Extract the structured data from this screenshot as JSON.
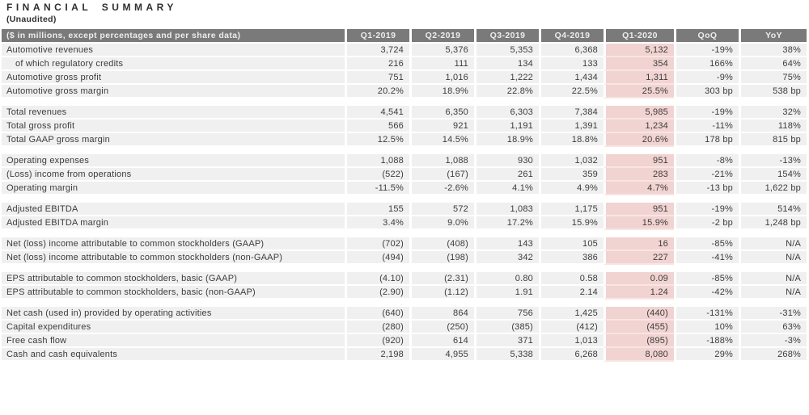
{
  "title": "FINANCIAL SUMMARY",
  "subtitle": "(Unaudited)",
  "colors": {
    "header_bg": "#7a7a7a",
    "header_text": "#ededed",
    "row_bg": "#f0f0f0",
    "highlight_bg": "#f1d3d2",
    "highlight_divider": "#f7e5e4",
    "text": "#3c3c3c",
    "title_text": "#2f2f2f"
  },
  "table": {
    "header": [
      "($ in millions, except percentages and per share data)",
      "Q1-2019",
      "Q2-2019",
      "Q3-2019",
      "Q4-2019",
      "Q1-2020",
      "QoQ",
      "YoY"
    ],
    "highlight_column": "Q1-2020",
    "sections": [
      {
        "rows": [
          {
            "label": "Automotive revenues",
            "indent": false,
            "values": [
              "3,724",
              "5,376",
              "5,353",
              "6,368",
              "5,132",
              "-19%",
              "38%"
            ]
          },
          {
            "label": "of which regulatory credits",
            "indent": true,
            "values": [
              "216",
              "111",
              "134",
              "133",
              "354",
              "166%",
              "64%"
            ]
          },
          {
            "label": "Automotive gross profit",
            "indent": false,
            "values": [
              "751",
              "1,016",
              "1,222",
              "1,434",
              "1,311",
              "-9%",
              "75%"
            ]
          },
          {
            "label": "Automotive gross margin",
            "indent": false,
            "values": [
              "20.2%",
              "18.9%",
              "22.8%",
              "22.5%",
              "25.5%",
              "303 bp",
              "538 bp"
            ]
          }
        ]
      },
      {
        "rows": [
          {
            "label": "Total revenues",
            "indent": false,
            "values": [
              "4,541",
              "6,350",
              "6,303",
              "7,384",
              "5,985",
              "-19%",
              "32%"
            ]
          },
          {
            "label": "Total gross profit",
            "indent": false,
            "values": [
              "566",
              "921",
              "1,191",
              "1,391",
              "1,234",
              "-11%",
              "118%"
            ]
          },
          {
            "label": "Total GAAP gross margin",
            "indent": false,
            "values": [
              "12.5%",
              "14.5%",
              "18.9%",
              "18.8%",
              "20.6%",
              "178 bp",
              "815 bp"
            ]
          }
        ]
      },
      {
        "rows": [
          {
            "label": "Operating expenses",
            "indent": false,
            "values": [
              "1,088",
              "1,088",
              "930",
              "1,032",
              "951",
              "-8%",
              "-13%"
            ]
          },
          {
            "label": "(Loss) income from operations",
            "indent": false,
            "values": [
              "(522)",
              "(167)",
              "261",
              "359",
              "283",
              "-21%",
              "154%"
            ]
          },
          {
            "label": "Operating margin",
            "indent": false,
            "values": [
              "-11.5%",
              "-2.6%",
              "4.1%",
              "4.9%",
              "4.7%",
              "-13 bp",
              "1,622 bp"
            ]
          }
        ]
      },
      {
        "rows": [
          {
            "label": "Adjusted EBITDA",
            "indent": false,
            "values": [
              "155",
              "572",
              "1,083",
              "1,175",
              "951",
              "-19%",
              "514%"
            ]
          },
          {
            "label": "Adjusted EBITDA margin",
            "indent": false,
            "values": [
              "3.4%",
              "9.0%",
              "17.2%",
              "15.9%",
              "15.9%",
              "-2 bp",
              "1,248 bp"
            ]
          }
        ]
      },
      {
        "rows": [
          {
            "label": "Net (loss) income attributable to common stockholders (GAAP)",
            "indent": false,
            "values": [
              "(702)",
              "(408)",
              "143",
              "105",
              "16",
              "-85%",
              "N/A"
            ]
          },
          {
            "label": "Net (loss) income attributable to common stockholders (non-GAAP)",
            "indent": false,
            "values": [
              "(494)",
              "(198)",
              "342",
              "386",
              "227",
              "-41%",
              "N/A"
            ]
          }
        ]
      },
      {
        "rows": [
          {
            "label": "EPS attributable to common stockholders, basic (GAAP)",
            "indent": false,
            "values": [
              "(4.10)",
              "(2.31)",
              "0.80",
              "0.58",
              "0.09",
              "-85%",
              "N/A"
            ]
          },
          {
            "label": "EPS attributable to common stockholders, basic (non-GAAP)",
            "indent": false,
            "values": [
              "(2.90)",
              "(1.12)",
              "1.91",
              "2.14",
              "1.24",
              "-42%",
              "N/A"
            ]
          }
        ]
      },
      {
        "rows": [
          {
            "label": "Net cash (used in) provided by operating activities",
            "indent": false,
            "values": [
              "(640)",
              "864",
              "756",
              "1,425",
              "(440)",
              "-131%",
              "-31%"
            ]
          },
          {
            "label": "Capital expenditures",
            "indent": false,
            "values": [
              "(280)",
              "(250)",
              "(385)",
              "(412)",
              "(455)",
              "10%",
              "63%"
            ]
          },
          {
            "label": "Free cash flow",
            "indent": false,
            "values": [
              "(920)",
              "614",
              "371",
              "1,013",
              "(895)",
              "-188%",
              "-3%"
            ]
          },
          {
            "label": "Cash and cash equivalents",
            "indent": false,
            "values": [
              "2,198",
              "4,955",
              "5,338",
              "6,268",
              "8,080",
              "29%",
              "268%"
            ]
          }
        ]
      }
    ]
  }
}
